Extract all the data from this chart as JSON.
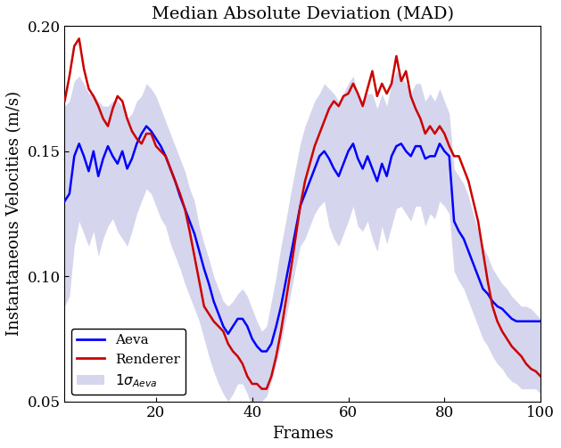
{
  "title": "Median Absolute Deviation (MAD)",
  "xlabel": "Frames",
  "ylabel": "Instantaneous Velocities (m/s)",
  "ylim": [
    0.05,
    0.2
  ],
  "xlim": [
    1,
    100
  ],
  "xticks": [
    20,
    40,
    60,
    80,
    100
  ],
  "yticks": [
    0.05,
    0.1,
    0.15,
    0.2
  ],
  "title_fontsize": 14,
  "label_fontsize": 13,
  "tick_fontsize": 12,
  "aeva_color": "#0000FF",
  "renderer_color": "#CC0000",
  "shade_color": "#8888cc",
  "shade_alpha": 0.35,
  "frames": [
    1,
    2,
    3,
    4,
    5,
    6,
    7,
    8,
    9,
    10,
    11,
    12,
    13,
    14,
    15,
    16,
    17,
    18,
    19,
    20,
    21,
    22,
    23,
    24,
    25,
    26,
    27,
    28,
    29,
    30,
    31,
    32,
    33,
    34,
    35,
    36,
    37,
    38,
    39,
    40,
    41,
    42,
    43,
    44,
    45,
    46,
    47,
    48,
    49,
    50,
    51,
    52,
    53,
    54,
    55,
    56,
    57,
    58,
    59,
    60,
    61,
    62,
    63,
    64,
    65,
    66,
    67,
    68,
    69,
    70,
    71,
    72,
    73,
    74,
    75,
    76,
    77,
    78,
    79,
    80,
    81,
    82,
    83,
    84,
    85,
    86,
    87,
    88,
    89,
    90,
    91,
    92,
    93,
    94,
    95,
    96,
    97,
    98,
    99,
    100
  ],
  "aeva": [
    0.13,
    0.133,
    0.148,
    0.153,
    0.148,
    0.142,
    0.15,
    0.14,
    0.147,
    0.152,
    0.148,
    0.145,
    0.15,
    0.143,
    0.147,
    0.153,
    0.157,
    0.16,
    0.158,
    0.155,
    0.152,
    0.148,
    0.143,
    0.138,
    0.132,
    0.127,
    0.122,
    0.117,
    0.11,
    0.103,
    0.097,
    0.09,
    0.085,
    0.08,
    0.077,
    0.08,
    0.083,
    0.083,
    0.08,
    0.075,
    0.072,
    0.07,
    0.07,
    0.073,
    0.08,
    0.088,
    0.098,
    0.108,
    0.118,
    0.128,
    0.133,
    0.138,
    0.143,
    0.148,
    0.15,
    0.147,
    0.143,
    0.14,
    0.145,
    0.15,
    0.153,
    0.147,
    0.143,
    0.148,
    0.143,
    0.138,
    0.145,
    0.14,
    0.148,
    0.152,
    0.153,
    0.15,
    0.148,
    0.152,
    0.152,
    0.147,
    0.148,
    0.148,
    0.153,
    0.15,
    0.148,
    0.122,
    0.118,
    0.115,
    0.11,
    0.105,
    0.1,
    0.095,
    0.093,
    0.09,
    0.088,
    0.087,
    0.085,
    0.083,
    0.082,
    0.082,
    0.082,
    0.082,
    0.082,
    0.082
  ],
  "renderer": [
    0.17,
    0.18,
    0.192,
    0.195,
    0.183,
    0.175,
    0.172,
    0.168,
    0.163,
    0.16,
    0.167,
    0.172,
    0.17,
    0.163,
    0.158,
    0.155,
    0.153,
    0.157,
    0.157,
    0.152,
    0.15,
    0.148,
    0.143,
    0.138,
    0.133,
    0.127,
    0.118,
    0.108,
    0.098,
    0.088,
    0.085,
    0.082,
    0.08,
    0.078,
    0.073,
    0.07,
    0.068,
    0.065,
    0.06,
    0.057,
    0.057,
    0.055,
    0.055,
    0.06,
    0.068,
    0.078,
    0.09,
    0.102,
    0.115,
    0.128,
    0.138,
    0.145,
    0.152,
    0.157,
    0.162,
    0.167,
    0.17,
    0.168,
    0.172,
    0.173,
    0.177,
    0.173,
    0.168,
    0.175,
    0.182,
    0.172,
    0.177,
    0.173,
    0.177,
    0.188,
    0.178,
    0.182,
    0.172,
    0.167,
    0.163,
    0.157,
    0.16,
    0.157,
    0.16,
    0.157,
    0.152,
    0.148,
    0.148,
    0.143,
    0.138,
    0.13,
    0.122,
    0.11,
    0.098,
    0.088,
    0.082,
    0.078,
    0.075,
    0.072,
    0.07,
    0.068,
    0.065,
    0.063,
    0.062,
    0.06
  ],
  "aeva_upper": [
    0.168,
    0.17,
    0.178,
    0.18,
    0.177,
    0.173,
    0.173,
    0.17,
    0.168,
    0.168,
    0.17,
    0.17,
    0.168,
    0.163,
    0.165,
    0.17,
    0.172,
    0.177,
    0.175,
    0.172,
    0.167,
    0.162,
    0.157,
    0.152,
    0.147,
    0.142,
    0.135,
    0.13,
    0.12,
    0.113,
    0.107,
    0.1,
    0.095,
    0.09,
    0.088,
    0.09,
    0.093,
    0.095,
    0.092,
    0.087,
    0.082,
    0.078,
    0.08,
    0.09,
    0.1,
    0.112,
    0.122,
    0.133,
    0.143,
    0.153,
    0.16,
    0.165,
    0.17,
    0.173,
    0.177,
    0.175,
    0.173,
    0.17,
    0.173,
    0.177,
    0.18,
    0.173,
    0.17,
    0.173,
    0.173,
    0.167,
    0.173,
    0.168,
    0.177,
    0.182,
    0.18,
    0.177,
    0.173,
    0.177,
    0.177,
    0.17,
    0.173,
    0.17,
    0.175,
    0.17,
    0.165,
    0.143,
    0.14,
    0.137,
    0.132,
    0.125,
    0.118,
    0.112,
    0.108,
    0.103,
    0.1,
    0.097,
    0.095,
    0.092,
    0.09,
    0.088,
    0.088,
    0.087,
    0.085,
    0.083
  ],
  "aeva_lower": [
    0.088,
    0.092,
    0.112,
    0.122,
    0.117,
    0.112,
    0.118,
    0.108,
    0.115,
    0.12,
    0.123,
    0.118,
    0.115,
    0.112,
    0.118,
    0.125,
    0.13,
    0.135,
    0.133,
    0.128,
    0.123,
    0.12,
    0.113,
    0.108,
    0.103,
    0.097,
    0.092,
    0.087,
    0.082,
    0.075,
    0.068,
    0.062,
    0.057,
    0.053,
    0.05,
    0.053,
    0.057,
    0.057,
    0.053,
    0.048,
    0.045,
    0.05,
    0.052,
    0.058,
    0.065,
    0.073,
    0.083,
    0.093,
    0.103,
    0.112,
    0.115,
    0.12,
    0.125,
    0.128,
    0.13,
    0.12,
    0.115,
    0.112,
    0.117,
    0.122,
    0.128,
    0.12,
    0.118,
    0.122,
    0.115,
    0.11,
    0.12,
    0.113,
    0.12,
    0.127,
    0.128,
    0.125,
    0.122,
    0.128,
    0.128,
    0.12,
    0.125,
    0.123,
    0.13,
    0.128,
    0.125,
    0.102,
    0.098,
    0.095,
    0.09,
    0.085,
    0.08,
    0.075,
    0.072,
    0.068,
    0.065,
    0.063,
    0.06,
    0.058,
    0.057,
    0.055,
    0.055,
    0.055,
    0.055,
    0.053
  ]
}
